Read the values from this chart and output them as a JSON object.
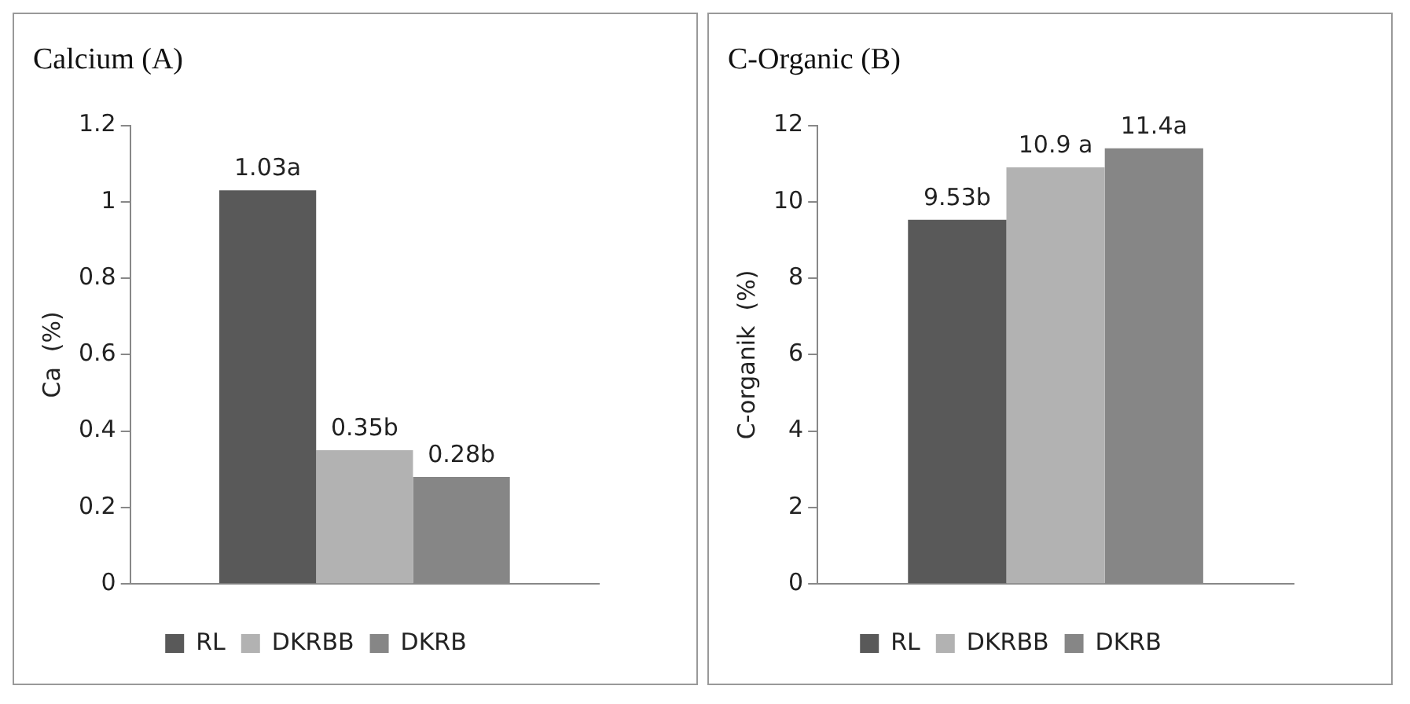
{
  "chart_data": [
    {
      "type": "bar",
      "title": "Calcium (A)",
      "ylabel": "Ca  (%)",
      "categories": [
        null
      ],
      "ylim": [
        0,
        1.2
      ],
      "yticks": [
        0,
        0.2,
        0.4,
        0.6,
        0.8,
        1,
        1.2
      ],
      "grid": false,
      "legend": "bottom",
      "series": [
        {
          "name": "RL",
          "color": "#595959",
          "values": [
            1.03
          ],
          "value_labels": [
            "1.03a"
          ]
        },
        {
          "name": "DKRBB",
          "color": "#b2b2b2",
          "values": [
            0.35
          ],
          "value_labels": [
            "0.35b"
          ]
        },
        {
          "name": "DKRB",
          "color": "#868686",
          "values": [
            0.28
          ],
          "value_labels": [
            "0.28b"
          ]
        }
      ]
    },
    {
      "type": "bar",
      "title": "C-Organic (B)",
      "ylabel": "C-organik  (%)",
      "categories": [
        null
      ],
      "ylim": [
        0,
        12
      ],
      "yticks": [
        0,
        2,
        4,
        6,
        8,
        10,
        12
      ],
      "grid": false,
      "legend": "bottom",
      "series": [
        {
          "name": "RL",
          "color": "#595959",
          "values": [
            9.53
          ],
          "value_labels": [
            "9.53b"
          ]
        },
        {
          "name": "DKRBB",
          "color": "#b2b2b2",
          "values": [
            10.9
          ],
          "value_labels": [
            "10.9 a"
          ]
        },
        {
          "name": "DKRB",
          "color": "#868686",
          "values": [
            11.4
          ],
          "value_labels": [
            "11.4a"
          ]
        }
      ]
    }
  ]
}
